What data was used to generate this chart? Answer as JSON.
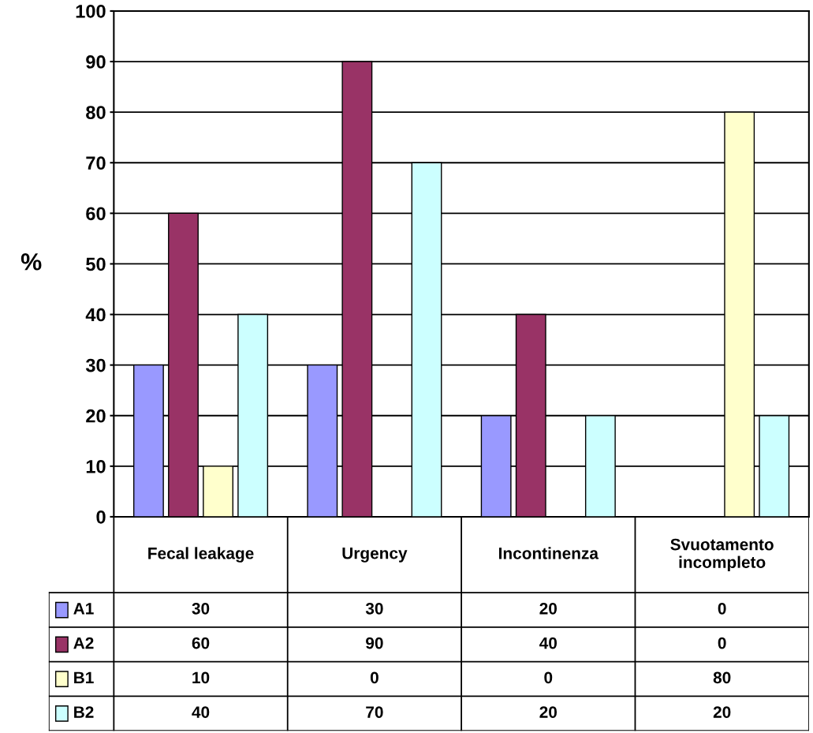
{
  "chart_data": {
    "type": "bar",
    "ylabel": "%",
    "categories": [
      "Fecal leakage",
      "Urgency",
      "Incontinenza",
      "Svuotamento\nincompleto"
    ],
    "series": [
      {
        "name": "A1",
        "color": "#9999ff",
        "values": [
          30,
          30,
          20,
          0
        ]
      },
      {
        "name": "A2",
        "color": "#993366",
        "values": [
          60,
          90,
          40,
          0
        ]
      },
      {
        "name": "B1",
        "color": "#ffffcc",
        "values": [
          10,
          0,
          0,
          80
        ]
      },
      {
        "name": "B2",
        "color": "#ccffff",
        "values": [
          40,
          70,
          20,
          20
        ]
      }
    ],
    "ylim": [
      0,
      100
    ],
    "yticks": [
      0,
      10,
      20,
      30,
      40,
      50,
      60,
      70,
      80,
      90,
      100
    ],
    "grid": "y",
    "data_labels": true,
    "legend": "bottom left"
  }
}
